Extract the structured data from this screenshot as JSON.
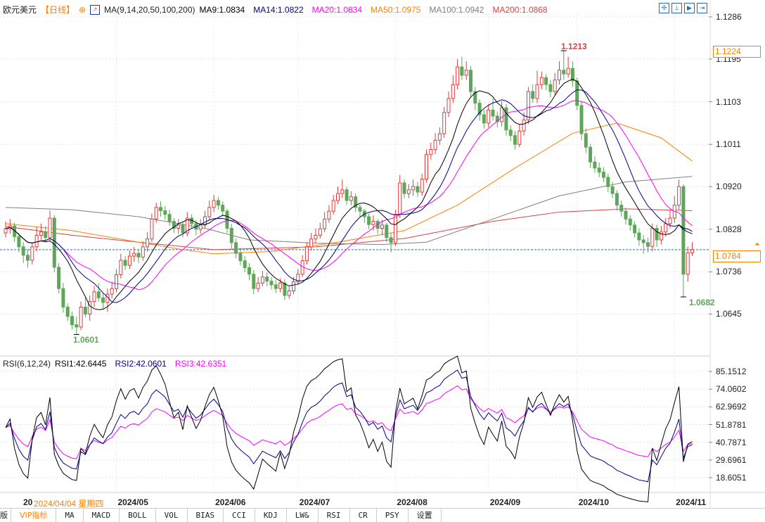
{
  "header": {
    "symbol": "欧元美元",
    "period": "【日线】",
    "ma_params": "MA(9,14,20,50,100,200)",
    "ma_values": [
      {
        "label": "MA9:1.0834",
        "color": "#000000"
      },
      {
        "label": "MA14:1.0822",
        "color": "#00008b"
      },
      {
        "label": "MA20:1.0834",
        "color": "#ff00ff"
      },
      {
        "label": "MA50:1.0975",
        "color": "#ff8000"
      },
      {
        "label": "MA100:1.0942",
        "color": "#808080"
      },
      {
        "label": "MA200:1.0868",
        "color": "#e04040"
      }
    ],
    "toolbar_icons": [
      "crosshair-icon",
      "fit-range-icon",
      "play-icon",
      "goto-end-icon"
    ]
  },
  "rsi_legend": {
    "params": "RSI(6,12,24)",
    "values": [
      {
        "label": "RSI1:42.6445",
        "color": "#000000"
      },
      {
        "label": "RSI2:42.0601",
        "color": "#00008b"
      },
      {
        "label": "RSI3:42.6351",
        "color": "#ff00ff"
      }
    ]
  },
  "colors": {
    "up": "#e03c3c",
    "down": "#5ea65a",
    "accent": "#ff8000",
    "current_line": "#1e6fbf"
  },
  "chart_data": [
    {
      "type": "candlestick",
      "title": "",
      "y_ticks": [
        "1.1286",
        "1.1195",
        "1.1103",
        "1.1011",
        "1.0920",
        "1.0828",
        "1.0736",
        "1.0645"
      ],
      "ylim": [
        1.057,
        1.13
      ],
      "x_ticks": [
        {
          "label": "2024/05",
          "bar": 25
        },
        {
          "label": "2024/06",
          "bar": 47
        },
        {
          "label": "2024/07",
          "bar": 66
        },
        {
          "label": "2024/08",
          "bar": 88
        },
        {
          "label": "2024/09",
          "bar": 109
        },
        {
          "label": "2024/10",
          "bar": 129
        },
        {
          "label": "2024/11",
          "bar": 151
        }
      ],
      "cursor_date": {
        "prefix": "20",
        "label": "2024/04/04 星期四"
      },
      "first_open": 1.082,
      "close": [
        1.0829,
        1.0835,
        1.0812,
        1.079,
        1.0772,
        1.0761,
        1.079,
        1.0815,
        1.0822,
        1.081,
        1.0852,
        1.0746,
        1.07,
        1.066,
        1.064,
        1.0622,
        1.0617,
        1.066,
        1.0645,
        1.0672,
        1.0693,
        1.068,
        1.067,
        1.0688,
        1.07,
        1.073,
        1.0761,
        1.075,
        1.077,
        1.0776,
        1.0768,
        1.079,
        1.0807,
        1.085,
        1.0875,
        1.0868,
        1.086,
        1.0845,
        1.083,
        1.0837,
        1.082,
        1.0852,
        1.084,
        1.0828,
        1.0837,
        1.0855,
        1.0875,
        1.089,
        1.088,
        1.0867,
        1.083,
        1.0799,
        1.0776,
        1.076,
        1.0745,
        1.0731,
        1.07,
        1.0712,
        1.0725,
        1.0716,
        1.0708,
        1.07,
        1.0712,
        1.0685,
        1.0695,
        1.0715,
        1.0731,
        1.076,
        1.079,
        1.0807,
        1.0815,
        1.0829,
        1.085,
        1.0867,
        1.089,
        1.0905,
        1.0913,
        1.089,
        1.0898,
        1.0875,
        1.0867,
        1.0855,
        1.0838,
        1.0845,
        1.083,
        1.0837,
        1.081,
        1.0799,
        1.086,
        1.0928,
        1.0905,
        1.0913,
        1.092,
        1.0908,
        1.0936,
        1.0989,
        1.1,
        1.102,
        1.1034,
        1.108,
        1.111,
        1.114,
        1.1178,
        1.116,
        1.1171,
        1.1125,
        1.11,
        1.1075,
        1.1057,
        1.1085,
        1.1072,
        1.106,
        1.109,
        1.1042,
        1.103,
        1.1011,
        1.104,
        1.1064,
        1.1125,
        1.111,
        1.114,
        1.1155,
        1.114,
        1.1125,
        1.115,
        1.1171,
        1.1163,
        1.1175,
        1.1148,
        1.1095,
        1.1034,
        1.1005,
        1.0973,
        1.096,
        1.0951,
        1.094,
        1.092,
        1.0905,
        1.088,
        1.0867,
        1.085,
        1.0837,
        1.082,
        1.0805,
        1.0799,
        1.0791,
        1.083,
        1.0805,
        1.0822,
        1.084,
        1.0852,
        1.088,
        1.092,
        1.0731,
        1.0777,
        1.0784
      ],
      "high": [
        1.0845,
        1.085,
        1.0842,
        1.082,
        1.08,
        1.0785,
        1.0798,
        1.0832,
        1.084,
        1.0835,
        1.0868,
        1.0858,
        1.0755,
        1.0712,
        1.0668,
        1.065,
        1.064,
        1.0672,
        1.068,
        1.0685,
        1.0705,
        1.0712,
        1.069,
        1.07,
        1.0715,
        1.0742,
        1.0775,
        1.077,
        1.0782,
        1.079,
        1.0785,
        1.0802,
        1.0822,
        1.0862,
        1.0885,
        1.0888,
        1.0878,
        1.087,
        1.0852,
        1.085,
        1.0845,
        1.0865,
        1.086,
        1.0848,
        1.085,
        1.0868,
        1.089,
        1.0902,
        1.0898,
        1.0888,
        1.0872,
        1.084,
        1.0808,
        1.0788,
        1.077,
        1.0755,
        1.074,
        1.0725,
        1.0738,
        1.0735,
        1.0725,
        1.0718,
        1.0722,
        1.072,
        1.0705,
        1.0725,
        1.0742,
        1.0772,
        1.08,
        1.082,
        1.083,
        1.0842,
        1.0865,
        1.088,
        1.0902,
        1.092,
        1.0935,
        1.092,
        1.091,
        1.0905,
        1.0882,
        1.0872,
        1.0862,
        1.0858,
        1.085,
        1.0848,
        1.0842,
        1.082,
        1.087,
        1.0945,
        1.0935,
        1.0925,
        1.0935,
        1.093,
        1.0948,
        1.1,
        1.1015,
        1.1035,
        1.1048,
        1.1092,
        1.1125,
        1.116,
        1.1195,
        1.12,
        1.119,
        1.118,
        1.1135,
        1.1108,
        1.1085,
        1.1098,
        1.111,
        1.1082,
        1.1105,
        1.1098,
        1.1052,
        1.104,
        1.1055,
        1.108,
        1.1135,
        1.114,
        1.117,
        1.1168,
        1.1162,
        1.115,
        1.1165,
        1.119,
        1.1213,
        1.12,
        1.119,
        1.1155,
        1.1105,
        1.1045,
        1.1012,
        1.0985,
        1.0972,
        1.0962,
        1.0948,
        1.093,
        1.0912,
        1.089,
        1.0875,
        1.0858,
        1.0845,
        1.083,
        1.0815,
        1.081,
        1.084,
        1.0838,
        1.0835,
        1.0852,
        1.087,
        1.09,
        1.0935,
        1.0925,
        1.079,
        1.08
      ],
      "low": [
        1.081,
        1.0818,
        1.08,
        1.0778,
        1.0755,
        1.0745,
        1.0752,
        1.078,
        1.0805,
        1.08,
        1.0802,
        1.0735,
        1.069,
        1.0648,
        1.063,
        1.0612,
        1.0601,
        1.061,
        1.0638,
        1.063,
        1.066,
        1.0672,
        1.0655,
        1.065,
        1.0678,
        1.0692,
        1.0722,
        1.074,
        1.0742,
        1.0758,
        1.0755,
        1.076,
        1.078,
        1.08,
        1.0842,
        1.0855,
        1.0848,
        1.0835,
        1.082,
        1.0818,
        1.081,
        1.0812,
        1.083,
        1.0815,
        1.0818,
        1.083,
        1.0848,
        1.0865,
        1.087,
        1.0855,
        1.082,
        1.0785,
        1.0765,
        1.075,
        1.0735,
        1.0718,
        1.0688,
        1.0692,
        1.0705,
        1.0705,
        1.0698,
        1.069,
        1.0692,
        1.0675,
        1.0678,
        1.0688,
        1.0708,
        1.0725,
        1.0752,
        1.0782,
        1.0798,
        1.0808,
        1.0822,
        1.0842,
        1.086,
        1.0882,
        1.0895,
        1.088,
        1.088,
        1.0865,
        1.0855,
        1.0842,
        1.0828,
        1.0825,
        1.0818,
        1.0815,
        1.08,
        1.0778,
        1.0792,
        1.0852,
        1.0895,
        1.0895,
        1.09,
        1.0898,
        1.09,
        1.0928,
        1.0978,
        1.099,
        1.101,
        1.1025,
        1.107,
        1.11,
        1.113,
        1.115,
        1.115,
        1.1115,
        1.1085,
        1.1062,
        1.1045,
        1.1048,
        1.1062,
        1.1048,
        1.105,
        1.103,
        1.1018,
        1.1,
        1.1005,
        1.103,
        1.1055,
        1.11,
        1.11,
        1.113,
        1.1128,
        1.1112,
        1.1118,
        1.114,
        1.115,
        1.1155,
        1.1135,
        1.1085,
        1.102,
        1.0992,
        1.096,
        1.095,
        1.094,
        1.093,
        1.0908,
        1.0895,
        1.0868,
        1.0855,
        1.0838,
        1.0825,
        1.081,
        1.0792,
        1.0775,
        1.0778,
        1.078,
        1.079,
        1.0795,
        1.0812,
        1.083,
        1.0842,
        1.087,
        1.0682,
        1.0715,
        1.077
      ],
      "moving_averages": {
        "computed_periods": [
          9,
          14,
          20
        ],
        "MA50": [
          [
            0,
            1.084
          ],
          [
            15,
            1.0825
          ],
          [
            30,
            1.08
          ],
          [
            40,
            1.0784
          ],
          [
            47,
            1.0775
          ],
          [
            60,
            1.078
          ],
          [
            75,
            1.08
          ],
          [
            90,
            1.0825
          ],
          [
            102,
            1.088
          ],
          [
            115,
            1.096
          ],
          [
            128,
            1.1035
          ],
          [
            138,
            1.1057
          ],
          [
            148,
            1.1025
          ],
          [
            155,
            1.0975
          ]
        ],
        "MA100": [
          [
            0,
            1.0875
          ],
          [
            15,
            1.087
          ],
          [
            30,
            1.0855
          ],
          [
            45,
            1.083
          ],
          [
            55,
            1.0805
          ],
          [
            70,
            1.0798
          ],
          [
            85,
            1.0795
          ],
          [
            95,
            1.08
          ],
          [
            110,
            1.085
          ],
          [
            125,
            1.09
          ],
          [
            140,
            1.093
          ],
          [
            155,
            1.0942
          ]
        ],
        "MA200": [
          [
            0,
            1.0834
          ],
          [
            15,
            1.0815
          ],
          [
            30,
            1.08
          ],
          [
            47,
            1.0784
          ],
          [
            70,
            1.079
          ],
          [
            90,
            1.0808
          ],
          [
            110,
            1.0845
          ],
          [
            125,
            1.0865
          ],
          [
            140,
            1.0872
          ],
          [
            155,
            1.0868
          ]
        ]
      },
      "annotations": {
        "high_label": "1.1213",
        "high_bar": 126,
        "low_label": "1.0601",
        "low_bar": 16,
        "recent_low_label": "1.0682",
        "recent_low_bar": 153
      },
      "current_price": "1.0784",
      "marker_price": "1.1224"
    },
    {
      "type": "line",
      "title": "RSI(6,12,24)",
      "periods": [
        6,
        12,
        24
      ],
      "y_ticks": [
        "85.1512",
        "74.0602",
        "62.9692",
        "51.8781",
        "40.7871",
        "29.6961",
        "18.6051"
      ],
      "ylim": [
        12,
        90
      ]
    }
  ],
  "tabs": [
    "版",
    "VIP指标",
    "MA",
    "MACD",
    "BOLL",
    "VOL",
    "BIAS",
    "CCI",
    "KDJ",
    "LW&",
    "RSI",
    "CR",
    "PSY",
    "设置"
  ]
}
